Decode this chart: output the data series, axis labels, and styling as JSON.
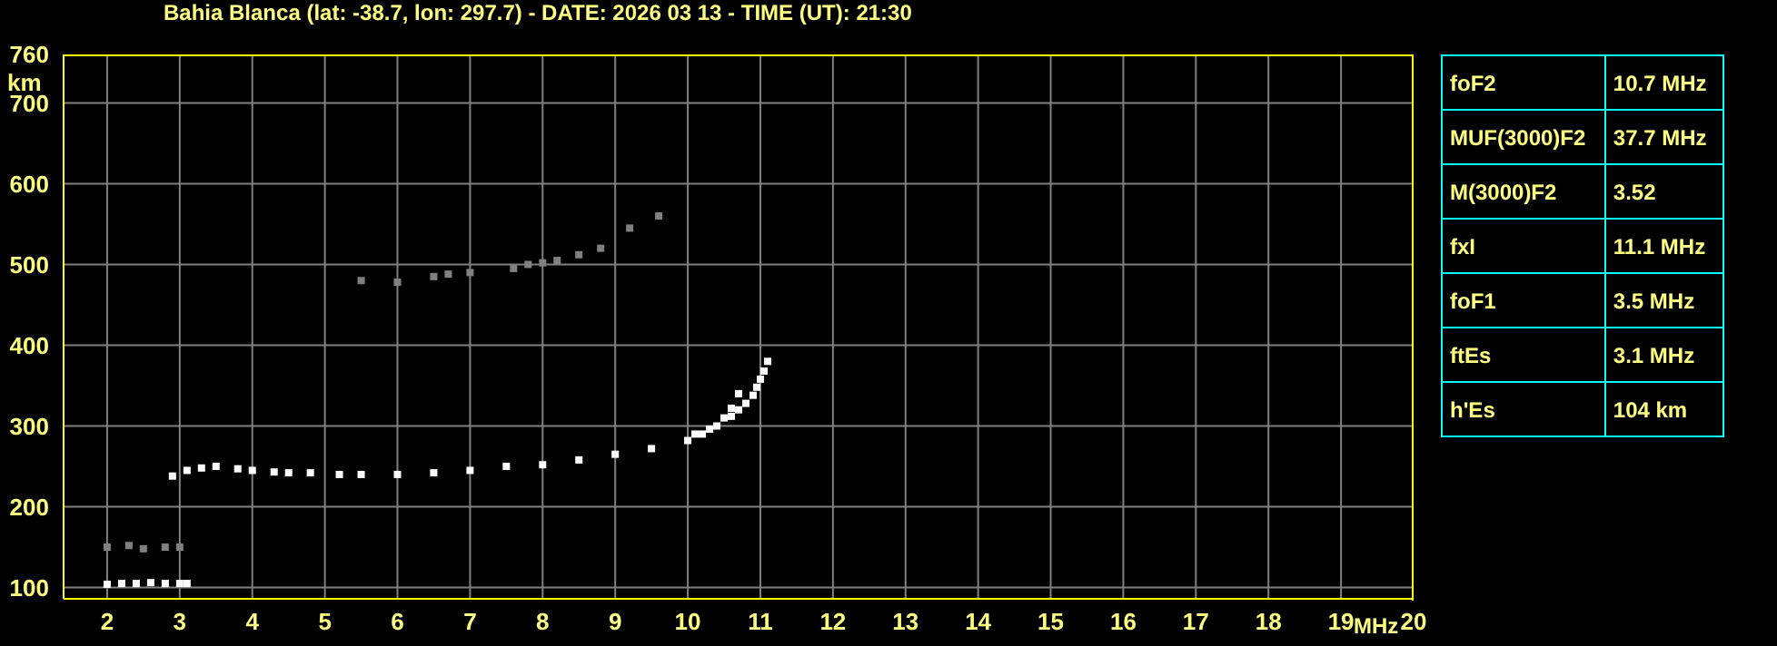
{
  "chart_data": [
    {
      "type": "scatter",
      "title": "Bahia Blanca (lat: -38.7, lon: 297.7) - DATE: 2026 03 13 - TIME (UT): 21:30",
      "xlabel": "MHz",
      "ylabel": "km",
      "marker": "square",
      "grid": true,
      "xlim": [
        1.4,
        20
      ],
      "xticks": [
        2,
        3,
        4,
        5,
        6,
        7,
        8,
        9,
        10,
        11,
        12,
        13,
        14,
        15,
        16,
        17,
        18,
        19,
        20
      ],
      "ylim": [
        86,
        760
      ],
      "yticks": [
        100,
        200,
        300,
        400,
        500,
        600,
        700,
        760
      ],
      "series": [
        {
          "color": "#ffffff",
          "x": [
            2.0,
            2.2,
            2.4,
            2.6,
            2.8,
            3.0,
            3.1
          ],
          "values": [
            104,
            105,
            105,
            106,
            105,
            105,
            105
          ]
        },
        {
          "color": "#ffffff",
          "x": [
            2.9,
            3.1,
            3.3,
            3.5,
            3.8,
            4.0,
            4.3,
            4.5,
            4.8,
            5.2,
            5.5,
            6.0,
            6.5,
            7.0,
            7.5,
            8.0,
            8.5,
            9.0,
            9.5,
            10.0,
            10.2,
            10.4,
            10.5,
            10.6,
            10.7
          ],
          "values": [
            238,
            245,
            248,
            250,
            247,
            245,
            243,
            242,
            242,
            240,
            240,
            240,
            242,
            245,
            250,
            252,
            258,
            265,
            272,
            282,
            290,
            300,
            310,
            322,
            340
          ]
        },
        {
          "color": "#ffffff",
          "x": [
            10.1,
            10.3,
            10.6,
            10.7,
            10.8,
            10.9,
            10.95,
            11.0,
            11.05,
            11.1
          ],
          "values": [
            290,
            296,
            312,
            320,
            328,
            338,
            348,
            358,
            368,
            380
          ]
        },
        {
          "color": "#808080",
          "x": [
            5.5,
            6.0,
            6.5,
            6.7,
            7.0,
            7.6,
            7.8,
            8.0,
            8.2,
            8.5,
            8.8,
            9.2,
            9.6
          ],
          "values": [
            480,
            478,
            485,
            488,
            490,
            495,
            500,
            502,
            505,
            512,
            520,
            545,
            560
          ]
        },
        {
          "color": "#808080",
          "x": [
            2.0,
            2.3,
            2.5,
            2.8,
            3.0
          ],
          "values": [
            150,
            152,
            148,
            150,
            150
          ]
        }
      ]
    },
    {
      "type": "other",
      "annotations": [
        "foF2",
        "10.7 MHz",
        "MUF(3000)F2",
        "37.7 MHz",
        "M(3000)F2",
        "3.52",
        "fxI",
        "11.1 MHz",
        "foF1",
        "3.5 MHz",
        "ftEs",
        "3.1 MHz",
        "h'Es",
        "104 km"
      ]
    }
  ]
}
